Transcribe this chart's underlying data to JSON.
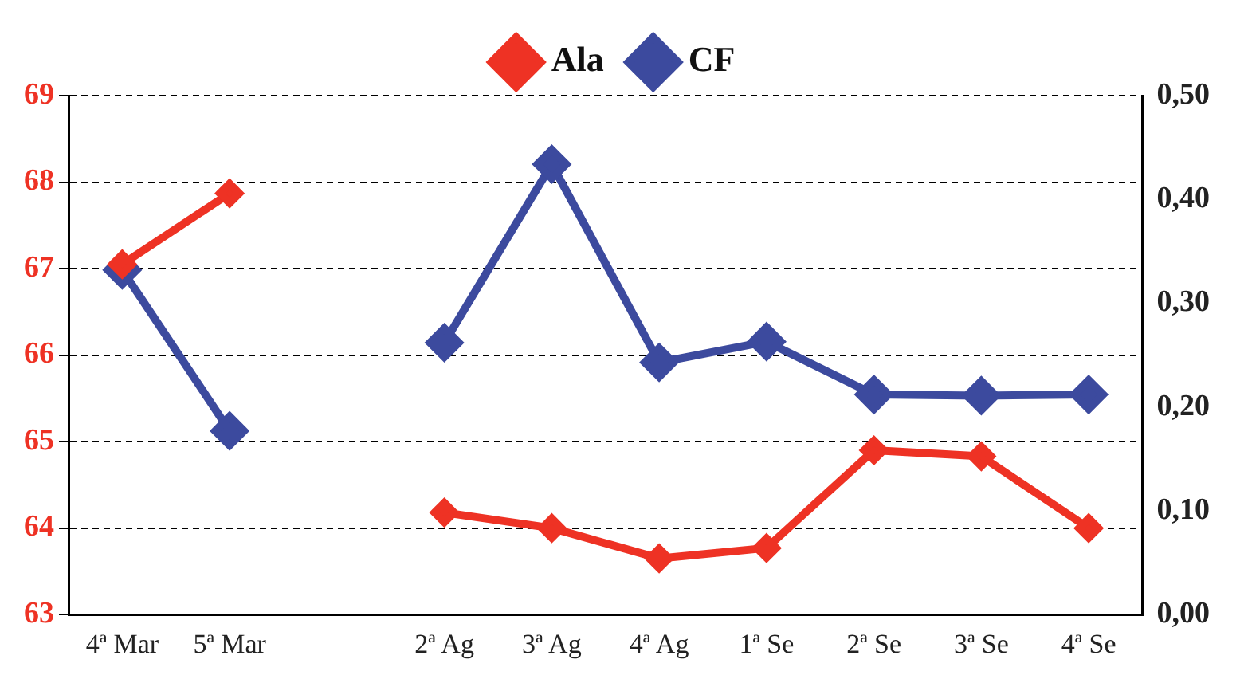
{
  "chart_data": {
    "type": "line",
    "categories": [
      "4ª Mar",
      "5ª Mar",
      null,
      "2ª Ag",
      "3ª Ag",
      "4ª Ag",
      "1ª Se",
      "2ª Se",
      "3ª Se",
      "4ª Se"
    ],
    "series": [
      {
        "name": "Ala",
        "color": "#ee3224",
        "values": [
          67.05,
          67.87,
          null,
          64.18,
          64.0,
          63.65,
          63.77,
          64.9,
          64.83,
          64.0
        ]
      },
      {
        "name": "CF",
        "color": "#3c4a9e",
        "axis": "y2",
        "values": [
          0.332,
          0.177,
          null,
          0.262,
          0.434,
          0.243,
          0.263,
          0.212,
          0.211,
          0.212
        ]
      }
    ],
    "ylim": [
      63,
      69
    ],
    "yticks": [
      63,
      64,
      65,
      66,
      67,
      68,
      69
    ],
    "y2lim": [
      0,
      0.5
    ],
    "y2ticks": [
      {
        "value": 0,
        "label": "0,00"
      },
      {
        "value": 0.1,
        "label": "0,10"
      },
      {
        "value": 0.2,
        "label": "0,20"
      },
      {
        "value": 0.3,
        "label": "0,30"
      },
      {
        "value": 0.4,
        "label": "0,40"
      },
      {
        "value": 0.5,
        "label": "0,50"
      }
    ],
    "grid": "y",
    "legend": "top",
    "marker": "diamond",
    "line_style": "solid"
  }
}
